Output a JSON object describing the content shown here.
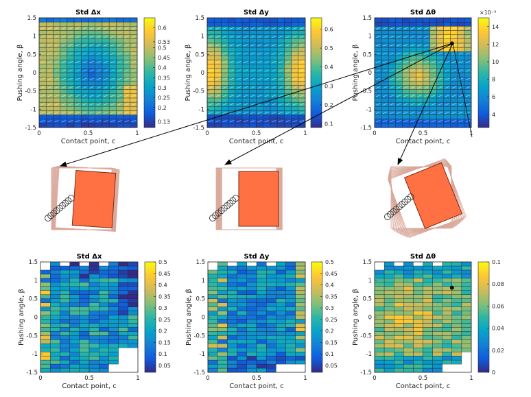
{
  "chart_data": [
    {
      "type": "heatmap",
      "title": "Std Δx",
      "xlabel": "Contact point, c",
      "ylabel": "Pushing angle, β",
      "xlim": [
        0,
        1
      ],
      "ylim": [
        -1.5,
        1.5
      ],
      "x_ticks": [
        "0",
        "0.5",
        "1"
      ],
      "y_ticks": [
        "-1.5",
        "-1",
        "-0.5",
        "0",
        "0.5",
        "1",
        "1.5"
      ],
      "colorbar_ticks": [
        "0.13",
        "0.2",
        "0.25",
        "0.3",
        "0.35",
        "0.4",
        "0.45",
        "0.5",
        "0.53",
        "0.6"
      ],
      "colorbar_exponent": "",
      "value_range": [
        0.1,
        0.65
      ],
      "grid_cols": 14,
      "grid_rows": 26,
      "pattern": "center-low"
    },
    {
      "type": "heatmap",
      "title": "Std Δy",
      "xlabel": "Contact point, c",
      "ylabel": "Pushing angle, β",
      "xlim": [
        0,
        1
      ],
      "ylim": [
        -1.5,
        1.5
      ],
      "x_ticks": [
        "0",
        "0.5",
        "1"
      ],
      "y_ticks": [
        "-1.5",
        "-1",
        "-0.5",
        "0",
        "0.5",
        "1",
        "1.5"
      ],
      "colorbar_ticks": [
        "0.1",
        "0.2",
        "0.3",
        "0.4",
        "0.5",
        "0.6"
      ],
      "colorbar_exponent": "",
      "value_range": [
        0.08,
        0.66
      ],
      "grid_cols": 14,
      "grid_rows": 26,
      "pattern": "edges-high"
    },
    {
      "type": "heatmap",
      "title": "Std Δθ",
      "xlabel": "Contact point, c",
      "ylabel": "Pushing angle, β",
      "xlim": [
        0,
        1
      ],
      "ylim": [
        -1.5,
        1.5
      ],
      "x_ticks": [
        "0",
        "0.5",
        "1"
      ],
      "y_ticks": [
        "-1.5",
        "-1",
        "-0.5",
        "0",
        "0.5",
        "1",
        "1.5"
      ],
      "colorbar_ticks": [
        "4",
        "6",
        "8",
        "10",
        "12",
        "14"
      ],
      "colorbar_exponent": "×10⁻³",
      "value_range": [
        2.5,
        15
      ],
      "grid_cols": 14,
      "grid_rows": 26,
      "pattern": "theta",
      "marked_point": {
        "x": 0.8,
        "y": 0.8
      }
    },
    {
      "type": "heatmap",
      "title": "Std Δx",
      "xlabel": "Contact point, c",
      "ylabel": "Pushing angle, β",
      "xlim": [
        0,
        1
      ],
      "ylim": [
        -1.5,
        1.5
      ],
      "x_ticks": [
        "0",
        "0.5",
        "1"
      ],
      "y_ticks": [
        "-1.5",
        "-1",
        "-0.5",
        "0",
        "0.5",
        "1",
        "1.5"
      ],
      "colorbar_ticks": [
        "0.05",
        "0.1",
        "0.15",
        "0.2",
        "0.25",
        "0.3",
        "0.35",
        "0.4",
        "0.45",
        "0.5"
      ],
      "colorbar_exponent": "",
      "value_range": [
        0.02,
        0.5
      ],
      "grid_cols": 10,
      "grid_rows": 27,
      "pattern": "noisy-x"
    },
    {
      "type": "heatmap",
      "title": "Std Δy",
      "xlabel": "Contact point, c",
      "ylabel": "Pushing angle, β",
      "xlim": [
        0,
        1
      ],
      "ylim": [
        -1.5,
        1.5
      ],
      "x_ticks": [
        "0",
        "0.5",
        "1"
      ],
      "y_ticks": [
        "-1.5",
        "-1",
        "-0.5",
        "0",
        "0.5",
        "1",
        "1.5"
      ],
      "colorbar_ticks": [
        "0.05",
        "0.1",
        "0.15",
        "0.2",
        "0.25",
        "0.3",
        "0.35",
        "0.4",
        "0.45",
        "0.5"
      ],
      "colorbar_exponent": "",
      "value_range": [
        0.02,
        0.5
      ],
      "grid_cols": 10,
      "grid_rows": 27,
      "pattern": "noisy-y"
    },
    {
      "type": "heatmap",
      "title": "Std Δθ",
      "xlabel": "Contact point, c",
      "ylabel": "Pushing angle, β",
      "xlim": [
        0,
        1
      ],
      "ylim": [
        -1.5,
        1.5
      ],
      "x_ticks": [
        "0",
        "0.5",
        "1"
      ],
      "y_ticks": [
        "-1.5",
        "-1",
        "-0.5",
        "0",
        "0.5",
        "1",
        "1.5"
      ],
      "colorbar_ticks": [
        "0",
        "0.02",
        "0.04",
        "0.06",
        "0.08",
        "0.1"
      ],
      "colorbar_exponent": "",
      "value_range": [
        0,
        0.1
      ],
      "grid_cols": 10,
      "grid_rows": 27,
      "pattern": "noisy-theta",
      "marked_point": {
        "x": 0.8,
        "y": 0.8
      }
    }
  ],
  "illustrations": [
    {
      "name": "push-illustration-dx",
      "rotation": 4
    },
    {
      "name": "push-illustration-dy",
      "rotation": 0
    },
    {
      "name": "push-illustration-dtheta",
      "rotation": -22
    }
  ],
  "colors": {
    "parula_stops": [
      "#352a87",
      "#0f5cdd",
      "#1481d6",
      "#06a4ca",
      "#2eb7a4",
      "#87bf77",
      "#d1bb59",
      "#fec832",
      "#f9fb0e"
    ],
    "box": "#ff7043",
    "box_edge": "#7a2a10",
    "trail": "#d9a89a"
  }
}
